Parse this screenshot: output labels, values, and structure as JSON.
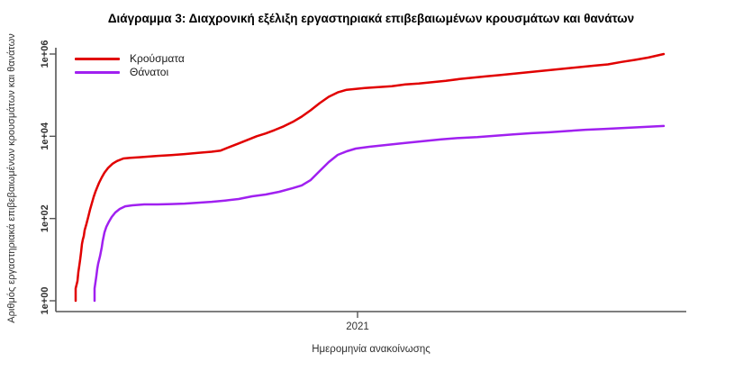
{
  "chart_data": {
    "type": "line",
    "title": "Διάγραμμα 3: Διαχρονική εξέλιξη εργαστηριακά επιβεβαιωμένων κρουσμάτων και θανάτων",
    "xlabel": "Ημερομηνία ανακοίνωσης",
    "ylabel": "Αριθμός εργαστηριακά επιβεβαιωμένων κρουσμάτων και θανάτων",
    "y_scale": "log10",
    "ylim": [
      1,
      1000000
    ],
    "grid": false,
    "legend_position": "top-left",
    "axis_color": "#555555",
    "text_color": "#303030",
    "y_ticks": [
      {
        "label": "1e+00",
        "value": 1
      },
      {
        "label": "1e+02",
        "value": 100
      },
      {
        "label": "1e+04",
        "value": 10000
      },
      {
        "label": "1e+06",
        "value": 1000000
      }
    ],
    "x_ticks": [
      {
        "label": "2021",
        "t": 313
      }
    ],
    "x_unit": "days_since_first_record",
    "x_axis_range": [
      -22,
      678
    ],
    "series": [
      {
        "name": "Κρούσματα",
        "color": "#e10000",
        "points": [
          [
            0,
            1
          ],
          [
            0,
            2
          ],
          [
            2,
            3
          ],
          [
            3,
            5
          ],
          [
            4,
            7
          ],
          [
            5,
            10
          ],
          [
            6,
            15
          ],
          [
            7,
            24
          ],
          [
            8,
            31
          ],
          [
            9,
            37
          ],
          [
            10,
            52
          ],
          [
            12,
            74
          ],
          [
            14,
            110
          ],
          [
            16,
            165
          ],
          [
            18,
            235
          ],
          [
            20,
            335
          ],
          [
            22,
            450
          ],
          [
            24,
            580
          ],
          [
            26,
            740
          ],
          [
            29,
            1000
          ],
          [
            32,
            1300
          ],
          [
            36,
            1700
          ],
          [
            41,
            2150
          ],
          [
            46,
            2500
          ],
          [
            53,
            2880
          ],
          [
            61,
            2980
          ],
          [
            71,
            3100
          ],
          [
            81,
            3200
          ],
          [
            91,
            3340
          ],
          [
            106,
            3500
          ],
          [
            121,
            3700
          ],
          [
            136,
            3950
          ],
          [
            151,
            4200
          ],
          [
            161,
            4500
          ],
          [
            171,
            5500
          ],
          [
            181,
            6700
          ],
          [
            191,
            8200
          ],
          [
            201,
            10000
          ],
          [
            211,
            11700
          ],
          [
            221,
            14200
          ],
          [
            231,
            17400
          ],
          [
            241,
            22300
          ],
          [
            251,
            30000
          ],
          [
            261,
            43000
          ],
          [
            271,
            64000
          ],
          [
            281,
            91000
          ],
          [
            291,
            117000
          ],
          [
            301,
            135000
          ],
          [
            311,
            142000
          ],
          [
            321,
            149000
          ],
          [
            336,
            157000
          ],
          [
            351,
            165000
          ],
          [
            366,
            182000
          ],
          [
            381,
            192000
          ],
          [
            396,
            207000
          ],
          [
            411,
            223000
          ],
          [
            426,
            246000
          ],
          [
            441,
            265000
          ],
          [
            456,
            286000
          ],
          [
            471,
            308000
          ],
          [
            486,
            332000
          ],
          [
            501,
            358000
          ],
          [
            516,
            386000
          ],
          [
            531,
            416000
          ],
          [
            546,
            448000
          ],
          [
            561,
            483000
          ],
          [
            576,
            521000
          ],
          [
            591,
            561000
          ],
          [
            606,
            640000
          ],
          [
            621,
            720000
          ],
          [
            636,
            820000
          ],
          [
            653,
            1000000
          ]
        ]
      },
      {
        "name": "Θάνατοι",
        "color": "#a020f0",
        "points": [
          [
            21,
            1
          ],
          [
            21,
            2
          ],
          [
            23,
            4
          ],
          [
            24,
            6
          ],
          [
            25,
            8
          ],
          [
            27,
            12
          ],
          [
            29,
            20
          ],
          [
            30,
            28
          ],
          [
            32,
            46
          ],
          [
            34,
            62
          ],
          [
            37,
            84
          ],
          [
            40,
            109
          ],
          [
            44,
            140
          ],
          [
            49,
            171
          ],
          [
            55,
            198
          ],
          [
            63,
            209
          ],
          [
            76,
            220
          ],
          [
            91,
            220
          ],
          [
            106,
            225
          ],
          [
            121,
            230
          ],
          [
            136,
            242
          ],
          [
            151,
            255
          ],
          [
            166,
            274
          ],
          [
            181,
            298
          ],
          [
            196,
            347
          ],
          [
            211,
            384
          ],
          [
            226,
            447
          ],
          [
            241,
            549
          ],
          [
            251,
            639
          ],
          [
            261,
            866
          ],
          [
            271,
            1430
          ],
          [
            281,
            2360
          ],
          [
            291,
            3530
          ],
          [
            301,
            4320
          ],
          [
            311,
            5010
          ],
          [
            326,
            5560
          ],
          [
            346,
            6170
          ],
          [
            366,
            6850
          ],
          [
            386,
            7600
          ],
          [
            406,
            8440
          ],
          [
            426,
            9100
          ],
          [
            446,
            9570
          ],
          [
            466,
            10300
          ],
          [
            486,
            11100
          ],
          [
            506,
            11900
          ],
          [
            526,
            12500
          ],
          [
            546,
            13400
          ],
          [
            566,
            14400
          ],
          [
            586,
            15000
          ],
          [
            606,
            15800
          ],
          [
            626,
            16600
          ],
          [
            653,
            17800
          ]
        ]
      }
    ]
  }
}
